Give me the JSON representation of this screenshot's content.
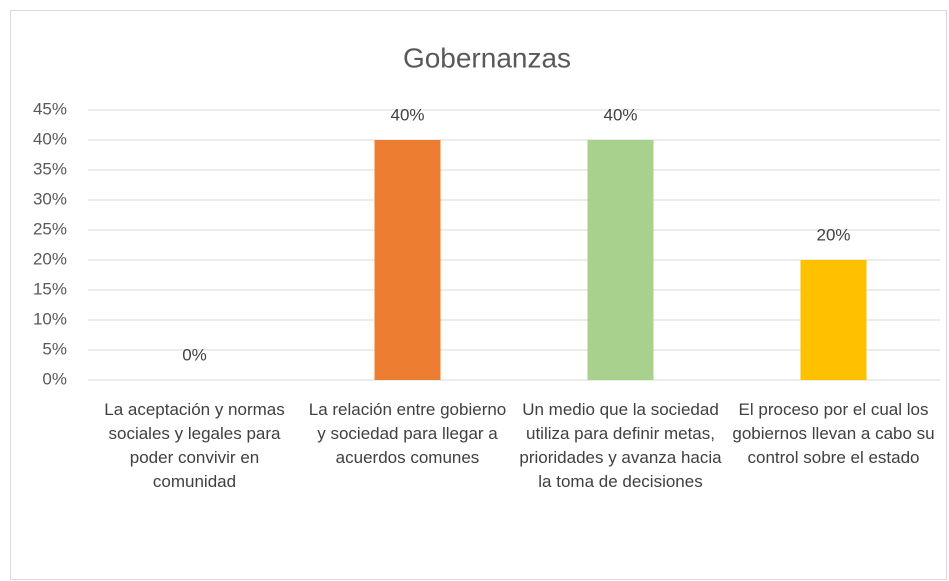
{
  "chart_data": {
    "type": "bar",
    "title": "Gobernanzas",
    "categories": [
      "La aceptación y normas sociales y legales para poder convivir en comunidad",
      "La relación entre gobierno y sociedad para llegar a acuerdos comunes",
      "Un medio que la sociedad utiliza para definir metas, prioridades y avanza hacia la toma de decisiones",
      "El proceso por el cual los gobiernos llevan a cabo su control sobre el estado"
    ],
    "values": [
      0,
      40,
      40,
      20
    ],
    "value_labels": [
      "0%",
      "40%",
      "40%",
      "20%"
    ],
    "colors": [
      "#4472c4",
      "#ed7d31",
      "#a9d18e",
      "#ffc000"
    ],
    "ylim": [
      0,
      45
    ],
    "yticks": [
      {
        "value": 0,
        "label": "0%"
      },
      {
        "value": 5,
        "label": "5%"
      },
      {
        "value": 10,
        "label": "10%"
      },
      {
        "value": 15,
        "label": "15%"
      },
      {
        "value": 20,
        "label": "20%"
      },
      {
        "value": 25,
        "label": "25%"
      },
      {
        "value": 30,
        "label": "30%"
      },
      {
        "value": 35,
        "label": "35%"
      },
      {
        "value": 40,
        "label": "40%"
      },
      {
        "value": 45,
        "label": "45%"
      }
    ],
    "grid": true
  }
}
